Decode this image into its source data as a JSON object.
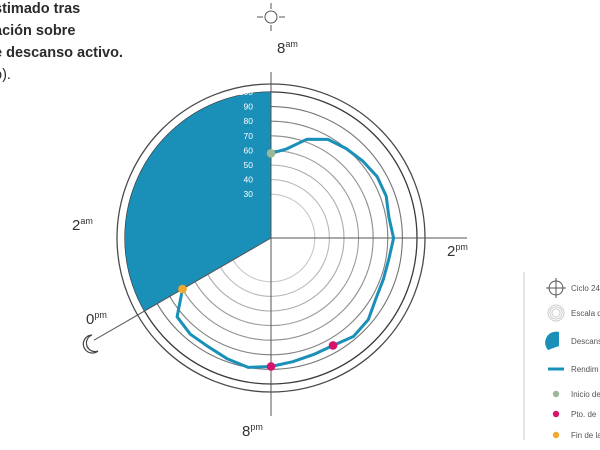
{
  "title_lines": [
    "stimado tras",
    "ación sobre",
    "e descanso activo."
  ],
  "subtitle": "o).",
  "chart_data": {
    "type": "radar",
    "radial_scale": {
      "ticks": [
        30,
        40,
        50,
        60,
        70,
        80,
        90,
        100
      ],
      "min": 0,
      "max": 100
    },
    "hour_labels": [
      {
        "num": "8",
        "suffix": "am",
        "angle_deg": 0
      },
      {
        "num": "2",
        "suffix": "pm",
        "angle_deg": 90
      },
      {
        "num": "8",
        "suffix": "pm",
        "angle_deg": 180
      },
      {
        "num": "0",
        "suffix": "pm",
        "angle_deg": 240
      },
      {
        "num": "2",
        "suffix": "am",
        "angle_deg": 270
      }
    ],
    "rest_sector": {
      "start_deg": 240,
      "end_deg": 360,
      "value": 100
    },
    "series": [
      {
        "angles_deg": [
          0,
          10,
          20,
          30,
          40,
          50,
          60,
          70,
          80,
          90,
          100,
          110,
          120,
          130,
          140,
          150,
          160,
          170,
          180,
          190,
          200,
          210,
          220,
          230,
          240
        ],
        "values": [
          58,
          62,
          72,
          78,
          80,
          82,
          84,
          84,
          82,
          84,
          82,
          82,
          83,
          87,
          88,
          85,
          85,
          86,
          88,
          90,
          88,
          86,
          86,
          84,
          70
        ]
      }
    ],
    "markers": [
      {
        "key": "inicio",
        "angle_deg": 0,
        "value": 58
      },
      {
        "key": "pico",
        "angle_deg": 150,
        "value": 85
      },
      {
        "key": "pico",
        "angle_deg": 180,
        "value": 88
      },
      {
        "key": "fin",
        "angle_deg": 240,
        "value": 70
      }
    ],
    "colors": {
      "rest": "#1a8fb8",
      "line": "#1a8fb8",
      "inicio": "#99b898",
      "pico": "#d6136a",
      "fin": "#f2a72e"
    }
  },
  "legend": [
    {
      "icon": "cycle-icon",
      "label": "Ciclo 24"
    },
    {
      "icon": "scale-icon",
      "label": "Escala d"
    },
    {
      "icon": "rest-sector-icon",
      "label": "Descans"
    },
    {
      "icon": "line-icon",
      "label": "Rendim"
    },
    {
      "icon": "start-dot-icon",
      "label": "Inicio de"
    },
    {
      "icon": "peak-dot-icon",
      "label": "Pto. de"
    },
    {
      "icon": "end-dot-icon",
      "label": "Fin de la"
    }
  ]
}
